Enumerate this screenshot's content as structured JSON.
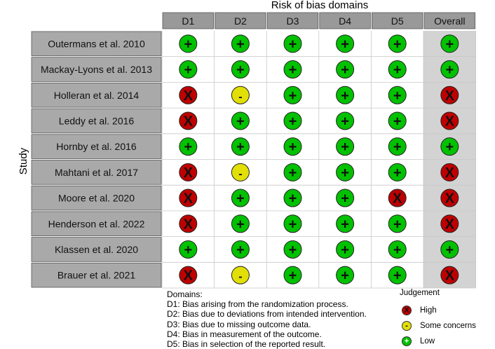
{
  "title": "Risk of bias domains",
  "y_axis_label": "Study",
  "domain_headers": [
    "D1",
    "D2",
    "D3",
    "D4",
    "D5",
    "Overall"
  ],
  "studies": [
    "Outermans et al. 2010",
    "Mackay-Lyons et al. 2013",
    "Holleran et al. 2014",
    "Leddy et al. 2016",
    "Hornby et al. 2016",
    "Mahtani et al. 2017",
    "Moore et al. 2020",
    "Henderson et al. 2022",
    "Klassen et al. 2020",
    "Brauer et al. 2021"
  ],
  "judgements": [
    [
      "low",
      "low",
      "low",
      "low",
      "low",
      "low"
    ],
    [
      "low",
      "low",
      "low",
      "low",
      "low",
      "low"
    ],
    [
      "high",
      "some",
      "low",
      "low",
      "low",
      "high"
    ],
    [
      "high",
      "low",
      "low",
      "low",
      "low",
      "high"
    ],
    [
      "low",
      "low",
      "low",
      "low",
      "low",
      "low"
    ],
    [
      "high",
      "some",
      "low",
      "low",
      "low",
      "high"
    ],
    [
      "high",
      "low",
      "low",
      "low",
      "high",
      "high"
    ],
    [
      "high",
      "low",
      "low",
      "low",
      "low",
      "high"
    ],
    [
      "low",
      "low",
      "low",
      "low",
      "low",
      "low"
    ],
    [
      "high",
      "some",
      "low",
      "low",
      "low",
      "high"
    ]
  ],
  "symbols": {
    "low": "+",
    "some": "-",
    "high": "X"
  },
  "colors": {
    "low": "#02C100",
    "some": "#E2DF07",
    "high": "#BF0000",
    "header_bg": "#999999",
    "study_bg": "#A9A9A9",
    "overall_bg": "#D3D3D3"
  },
  "domains_legend": {
    "heading": "Domains:",
    "lines": [
      "D1: Bias arising from the randomization process.",
      "D2: Bias due to deviations from intended intervention.",
      "D3: Bias due to missing outcome data.",
      "D4: Bias in measurement of the outcome.",
      "D5: Bias in selection of the reported result."
    ]
  },
  "judgement_legend": {
    "title": "Judgement",
    "items": [
      {
        "key": "high",
        "symbol": "X",
        "label": "High"
      },
      {
        "key": "some",
        "symbol": "-",
        "label": "Some concerns"
      },
      {
        "key": "low",
        "symbol": "+",
        "label": "Low"
      }
    ]
  }
}
